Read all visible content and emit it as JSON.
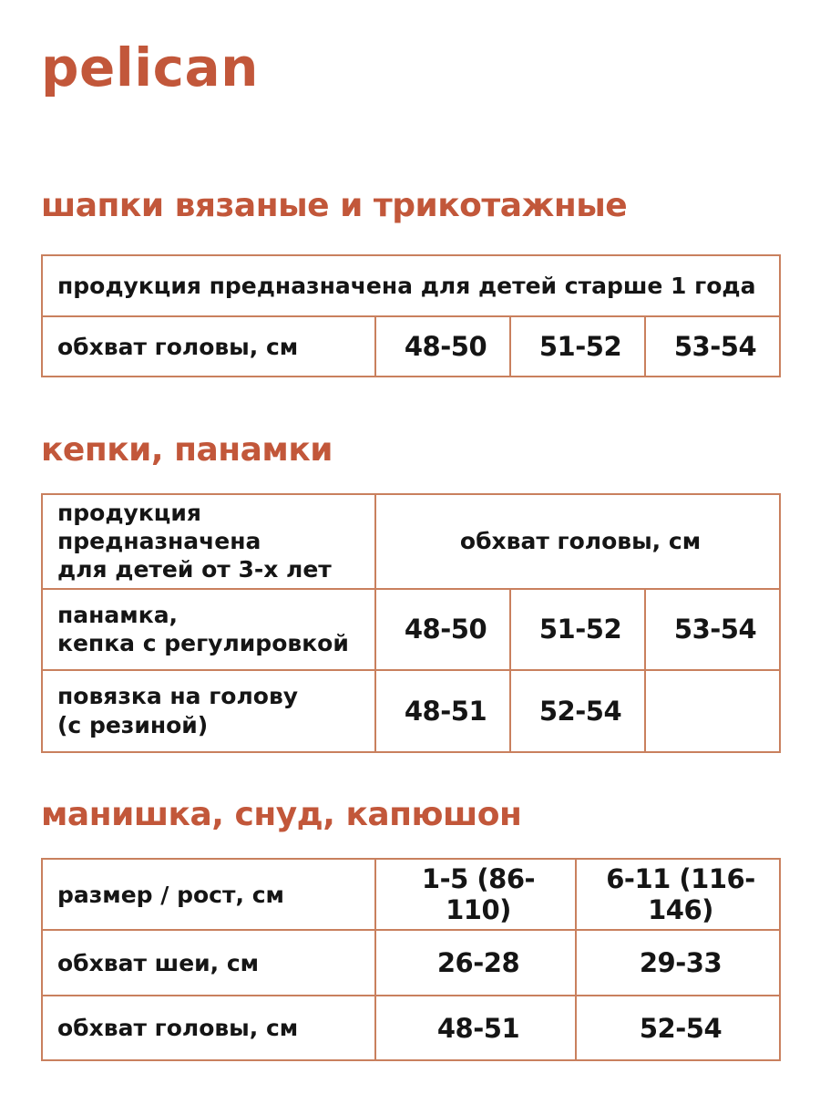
{
  "colors": {
    "accent": "#c2573a",
    "table_border": "#c9805e",
    "text": "#151515",
    "background": "#ffffff"
  },
  "logo": {
    "text": "pelican"
  },
  "section1": {
    "heading": "шапки вязаные и трикотажные",
    "note": "продукция предназначена для детей старше 1 года",
    "row1": {
      "label": "обхват головы, см",
      "c1": "48-50",
      "c2": "51-52",
      "c3": "53-54"
    }
  },
  "section2": {
    "heading": "кепки, панамки",
    "note": "продукция предназначена\nдля детей от 3-х лет",
    "header_span": "обхват головы, см",
    "row1": {
      "label": "панамка,\nкепка с регулировкой",
      "c1": "48-50",
      "c2": "51-52",
      "c3": "53-54"
    },
    "row2": {
      "label": "повязка на голову\n(с резиной)",
      "c1": "48-51",
      "c2": "52-54",
      "c3": ""
    }
  },
  "section3": {
    "heading": "манишка, снуд, капюшон",
    "row1": {
      "label": "размер / рост, см",
      "c1": "1-5 (86-110)",
      "c2": "6-11 (116-146)"
    },
    "row2": {
      "label": "обхват шеи, см",
      "c1": "26-28",
      "c2": "29-33"
    },
    "row3": {
      "label": "обхват головы, см",
      "c1": "48-51",
      "c2": "52-54"
    }
  }
}
